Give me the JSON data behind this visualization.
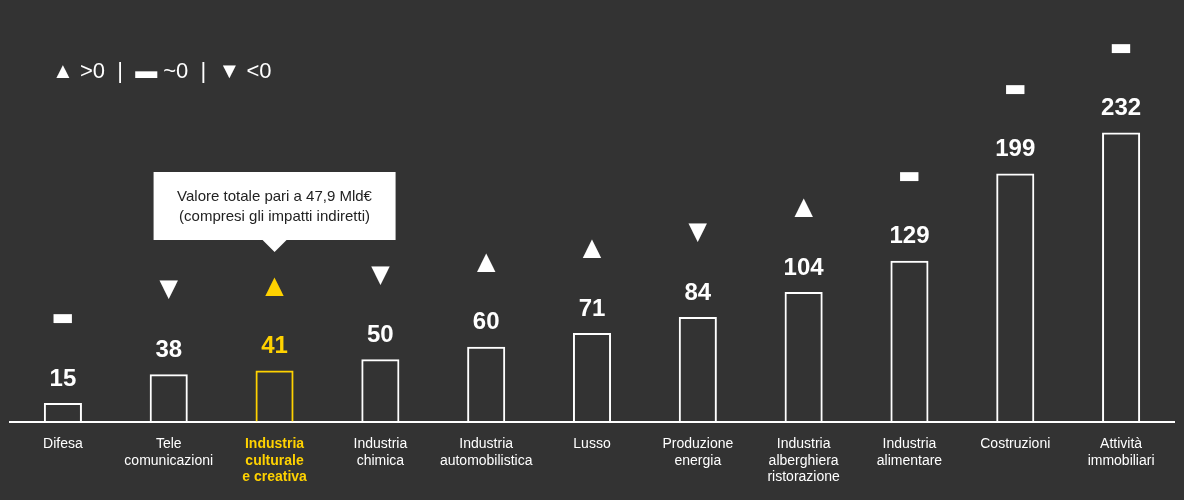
{
  "chart_data": {
    "type": "bar",
    "categories": [
      "Difesa",
      "Tele\ncomunicazioni",
      "Industria\nculturale\ne creativa",
      "Industria\nchimica",
      "Industria\nautomobilistica",
      "Lusso",
      "Produzione\nenergia",
      "Industria\nalberghiera\nristorazione",
      "Industria\nalimentare",
      "Costruzioni",
      "Attività\nimmobiliari"
    ],
    "values": [
      15,
      38,
      41,
      50,
      60,
      71,
      84,
      104,
      129,
      199,
      232
    ],
    "colors": [
      "#ffffff",
      "#ffffff",
      "#ffd200",
      "#ffffff",
      "#ffffff",
      "#ffffff",
      "#ffffff",
      "#ffffff",
      "#ffffff",
      "#ffffff",
      "#ffffff"
    ],
    "data_labels": true,
    "annotations": [
      "▲ >0  |  ▬ ~0  |  ▼ <0",
      "▬",
      "▼",
      "▲",
      "▼",
      "▲",
      "▲",
      "▼",
      "▲",
      "▬",
      "▬",
      "▬",
      "Valore totale pari a 47,9 Mld€\n(compresi gli impatti indiretti)"
    ]
  }
}
